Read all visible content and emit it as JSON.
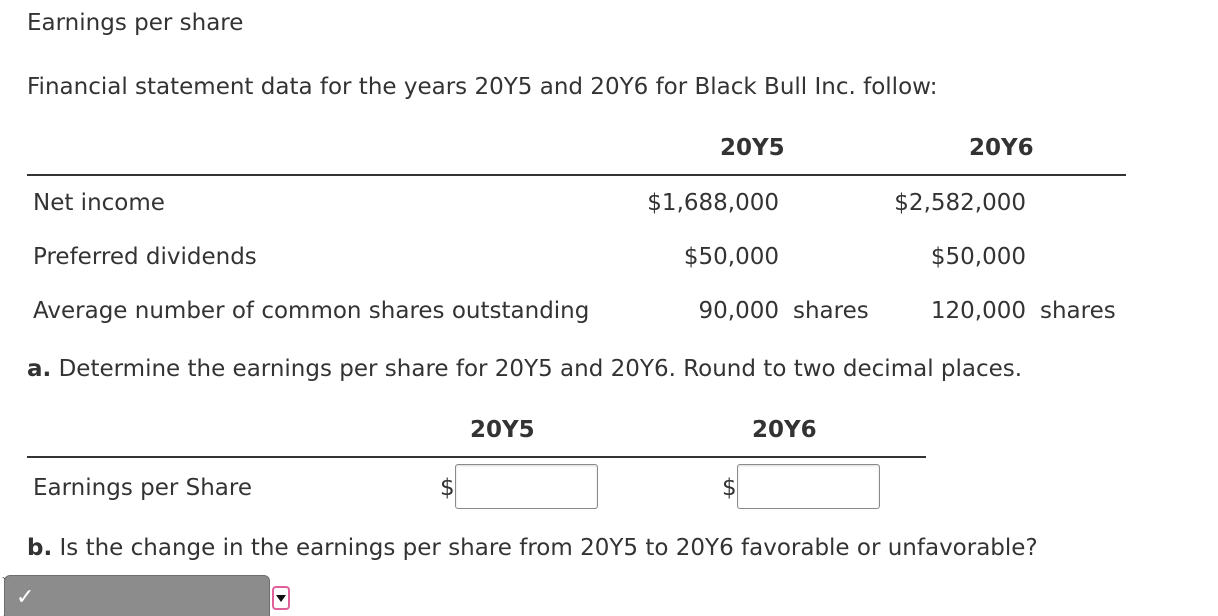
{
  "title": "Earnings per share",
  "intro": "Financial statement data for the years 20Y5 and 20Y6 for Black Bull Inc. follow:",
  "table": {
    "columns": [
      "20Y5",
      "20Y6"
    ],
    "rows": [
      {
        "label": "Net income",
        "y5": "$1,688,000",
        "y6": "$2,582,000"
      },
      {
        "label": "Preferred dividends",
        "y5": "$50,000",
        "y6": "$50,000"
      },
      {
        "label": "Average number of common shares outstanding",
        "y5": "90,000",
        "y5_unit": "shares",
        "y6": "120,000",
        "y6_unit": "shares"
      }
    ]
  },
  "part_a": {
    "prefix": "a.",
    "text": " Determine the earnings per share for 20Y5 and 20Y6. Round to two decimal places.",
    "columns": [
      "20Y5",
      "20Y6"
    ],
    "row_label": "Earnings per Share",
    "currency": "$",
    "input_y5": "",
    "input_y6": ""
  },
  "part_b": {
    "prefix": "b.",
    "text": " Is the change in the earnings per share from 20Y5 to 20Y6 favorable or unfavorable?",
    "selected": "",
    "check_icon": "check-icon"
  }
}
